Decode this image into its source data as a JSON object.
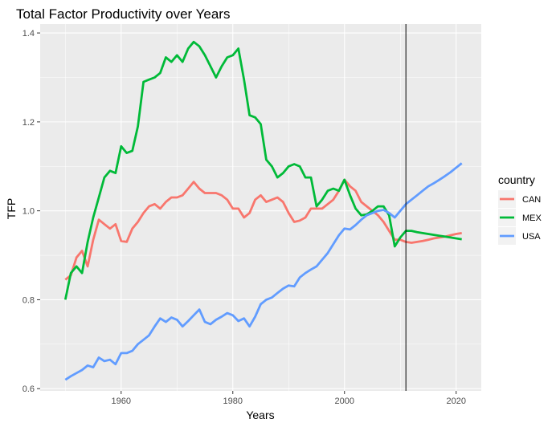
{
  "chart_data": {
    "type": "line",
    "title": "Total Factor Productivity over Years",
    "xlabel": "Years",
    "ylabel": "TFP",
    "xlim": [
      1945.5,
      2024.5
    ],
    "ylim": [
      0.595,
      1.42
    ],
    "x_ticks": [
      1960,
      1980,
      2000,
      2020
    ],
    "y_ticks": [
      0.6,
      0.8,
      1.0,
      1.2,
      1.4
    ],
    "y_tick_labels": [
      "0.6",
      "0.8",
      "1.0",
      "1.2",
      "1.4"
    ],
    "grid": true,
    "legend": {
      "title": "country",
      "placement": "right"
    },
    "vline_x": 2011,
    "x": [
      1950,
      1951,
      1952,
      1953,
      1954,
      1955,
      1956,
      1957,
      1958,
      1959,
      1960,
      1961,
      1962,
      1963,
      1964,
      1965,
      1966,
      1967,
      1968,
      1969,
      1970,
      1971,
      1972,
      1973,
      1974,
      1975,
      1976,
      1977,
      1978,
      1979,
      1980,
      1981,
      1982,
      1983,
      1984,
      1985,
      1986,
      1987,
      1988,
      1989,
      1990,
      1991,
      1992,
      1993,
      1994,
      1995,
      1996,
      1997,
      1998,
      1999,
      2000,
      2001,
      2002,
      2003,
      2004,
      2005,
      2006,
      2007,
      2008,
      2009,
      2010,
      2011,
      2012,
      2013,
      2014,
      2015,
      2016,
      2017,
      2018,
      2019,
      2020,
      2021
    ],
    "series": [
      {
        "name": "CAN",
        "color": "#F8766D",
        "values": [
          0.845,
          0.855,
          0.895,
          0.91,
          0.875,
          0.935,
          0.98,
          0.97,
          0.96,
          0.97,
          0.932,
          0.93,
          0.96,
          0.975,
          0.995,
          1.01,
          1.015,
          1.005,
          1.02,
          1.03,
          1.03,
          1.035,
          1.05,
          1.065,
          1.05,
          1.04,
          1.04,
          1.04,
          1.035,
          1.025,
          1.005,
          1.005,
          0.985,
          0.995,
          1.025,
          1.035,
          1.02,
          1.025,
          1.03,
          1.02,
          0.995,
          0.975,
          0.978,
          0.985,
          1.005,
          1.005,
          1.005,
          1.015,
          1.025,
          1.045,
          1.07,
          1.055,
          1.045,
          1.02,
          1.01,
          1.0,
          0.99,
          0.975,
          0.955,
          0.935,
          0.935,
          0.93,
          0.928,
          0.93,
          0.932,
          0.935,
          0.938,
          0.94,
          0.942,
          0.945,
          0.948,
          0.95
        ]
      },
      {
        "name": "MEX",
        "color": "#00BA38",
        "values": [
          0.8,
          0.86,
          0.875,
          0.86,
          0.93,
          0.985,
          1.03,
          1.075,
          1.09,
          1.085,
          1.145,
          1.13,
          1.135,
          1.19,
          1.29,
          1.295,
          1.3,
          1.31,
          1.345,
          1.335,
          1.35,
          1.335,
          1.365,
          1.38,
          1.37,
          1.35,
          1.325,
          1.3,
          1.325,
          1.345,
          1.35,
          1.365,
          1.295,
          1.215,
          1.21,
          1.195,
          1.115,
          1.1,
          1.075,
          1.085,
          1.1,
          1.105,
          1.1,
          1.075,
          1.075,
          1.01,
          1.025,
          1.045,
          1.05,
          1.045,
          1.07,
          1.035,
          1.005,
          0.99,
          0.992,
          1.0,
          1.01,
          1.01,
          0.99,
          0.92,
          0.94,
          0.955,
          0.955,
          0.952,
          0.95,
          0.948,
          0.946,
          0.944,
          0.942,
          0.94,
          0.938,
          0.936
        ]
      },
      {
        "name": "USA",
        "color": "#619CFF",
        "values": [
          0.62,
          0.628,
          0.635,
          0.642,
          0.652,
          0.648,
          0.67,
          0.662,
          0.665,
          0.655,
          0.68,
          0.68,
          0.685,
          0.7,
          0.71,
          0.72,
          0.74,
          0.758,
          0.75,
          0.76,
          0.755,
          0.74,
          0.752,
          0.765,
          0.778,
          0.75,
          0.745,
          0.755,
          0.762,
          0.77,
          0.765,
          0.752,
          0.758,
          0.74,
          0.762,
          0.79,
          0.8,
          0.805,
          0.815,
          0.825,
          0.832,
          0.83,
          0.85,
          0.86,
          0.868,
          0.875,
          0.89,
          0.905,
          0.925,
          0.945,
          0.96,
          0.958,
          0.968,
          0.98,
          0.99,
          0.995,
          1.0,
          1.002,
          0.995,
          0.985,
          1.0,
          1.015,
          1.025,
          1.035,
          1.045,
          1.055,
          1.062,
          1.07,
          1.078,
          1.087,
          1.097,
          1.107
        ]
      }
    ]
  }
}
